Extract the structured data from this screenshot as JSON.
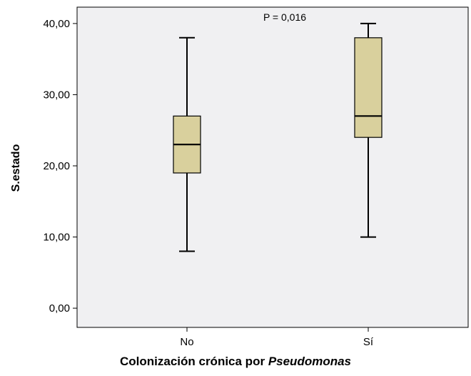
{
  "chart_data": {
    "type": "boxplot",
    "title": "",
    "xlabel_main": "Colonización crónica por",
    "xlabel_italic": "Pseudomonas",
    "ylabel": "S.estado",
    "ylim": [
      -2.7,
      42.3
    ],
    "yticks": [
      "0,00",
      "10,00",
      "20,00",
      "30,00",
      "40,00"
    ],
    "ytick_values": [
      0,
      10,
      20,
      30,
      40
    ],
    "annotation": "P = 0,016",
    "categories": [
      "No",
      "Sí"
    ],
    "boxes": [
      {
        "category": "No",
        "min": 8,
        "q1": 19,
        "median": 23,
        "q3": 27,
        "max": 38
      },
      {
        "category": "Sí",
        "min": 10,
        "q1": 24,
        "median": 27,
        "q3": 38,
        "max": 40
      }
    ],
    "colors": {
      "box_fill": "#d9d09d",
      "plot_bg": "#f0f0f2",
      "stroke": "#000000"
    }
  }
}
